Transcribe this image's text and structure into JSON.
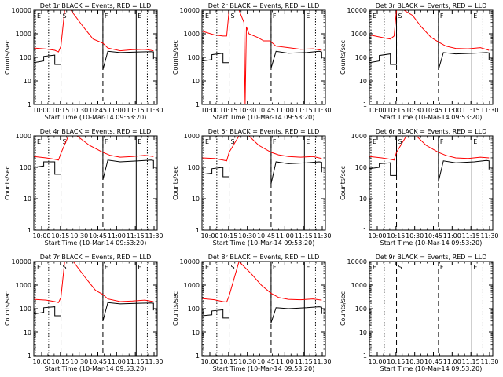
{
  "chart_data": [
    {
      "type": "line",
      "title": "Det 1r BLACK = Events, RED = LLD",
      "xlabel": "Start Time (10-Mar-14 09:53:20)",
      "ylabel": "Counts/sec",
      "y_scale": "log",
      "ylim": [
        1,
        10000
      ],
      "xlim": [
        0,
        100
      ],
      "xticks": [
        "10:00",
        "10:15",
        "10:30",
        "10:45",
        "11:00",
        "11:15",
        "11:30"
      ],
      "yticks": [
        "1",
        "10",
        "100",
        "1000",
        "10000"
      ],
      "markers": [
        {
          "label": "E",
          "x": 0
        },
        {
          "label": "S",
          "x": 22
        },
        {
          "label": "F",
          "x": 56
        },
        {
          "label": "E",
          "x": 83
        }
      ],
      "series": [
        {
          "name": "Events",
          "color": "#000000",
          "x": [
            0,
            8,
            8,
            17,
            17,
            22,
            22,
            56,
            56,
            60,
            70,
            85,
            95,
            97,
            97
          ],
          "y": [
            60,
            70,
            110,
            125,
            50,
            50,
            10000,
            10000,
            30,
            180,
            160,
            170,
            175,
            170,
            85
          ]
        },
        {
          "name": "LLD",
          "color": "#ff0000",
          "x": [
            0,
            10,
            17,
            20,
            22,
            25,
            30,
            40,
            48,
            56,
            60,
            70,
            80,
            90,
            97
          ],
          "y": [
            250,
            225,
            200,
            170,
            300,
            10000,
            10000,
            2000,
            600,
            400,
            250,
            190,
            210,
            220,
            190
          ]
        }
      ]
    },
    {
      "type": "line",
      "title": "Det 2r BLACK = Events, RED = LLD",
      "xlabel": "Start Time (10-Mar-14 09:53:20)",
      "ylabel": "Counts/sec",
      "y_scale": "log",
      "ylim": [
        1,
        10000
      ],
      "xlim": [
        0,
        100
      ],
      "xticks": [
        "10:00",
        "10:15",
        "10:30",
        "10:45",
        "11:00",
        "11:15",
        "11:30"
      ],
      "yticks": [
        "1",
        "10",
        "100",
        "1000",
        "10000"
      ],
      "markers": [
        {
          "label": "E",
          "x": 0
        },
        {
          "label": "S",
          "x": 22
        },
        {
          "label": "F",
          "x": 56
        },
        {
          "label": "E",
          "x": 83
        }
      ],
      "series": [
        {
          "name": "Events",
          "color": "#000000",
          "x": [
            0,
            8,
            8,
            17,
            17,
            22,
            22,
            56,
            56,
            60,
            70,
            85,
            95,
            97,
            97
          ],
          "y": [
            70,
            80,
            130,
            150,
            60,
            60,
            10000,
            10000,
            35,
            180,
            150,
            160,
            180,
            170,
            90
          ]
        },
        {
          "name": "LLD",
          "color": "#ff0000",
          "x": [
            0,
            10,
            17,
            20,
            22,
            30,
            34,
            35,
            36,
            38,
            45,
            50,
            55,
            60,
            70,
            80,
            90,
            97
          ],
          "y": [
            1300,
            900,
            800,
            800,
            10000,
            10000,
            3000,
            1,
            2000,
            1000,
            700,
            500,
            500,
            300,
            260,
            220,
            230,
            200
          ]
        }
      ]
    },
    {
      "type": "line",
      "title": "Det 3r BLACK = Events, RED = LLD",
      "xlabel": "Start Time (10-Mar-14 09:53:20)",
      "ylabel": "Counts/sec",
      "y_scale": "log",
      "ylim": [
        1,
        10000
      ],
      "xlim": [
        0,
        100
      ],
      "xticks": [
        "10:00",
        "10:15",
        "10:30",
        "10:45",
        "11:00",
        "11:15",
        "11:30"
      ],
      "yticks": [
        "1",
        "10",
        "100",
        "1000",
        "10000"
      ],
      "markers": [
        {
          "label": "E",
          "x": 0
        },
        {
          "label": "S",
          "x": 22
        },
        {
          "label": "F",
          "x": 56
        },
        {
          "label": "E",
          "x": 83
        }
      ],
      "series": [
        {
          "name": "Events",
          "color": "#000000",
          "x": [
            0,
            8,
            8,
            17,
            17,
            22,
            22,
            56,
            56,
            60,
            70,
            85,
            95,
            97,
            97
          ],
          "y": [
            60,
            70,
            120,
            140,
            50,
            50,
            10000,
            10000,
            30,
            160,
            140,
            150,
            160,
            155,
            75
          ]
        },
        {
          "name": "LLD",
          "color": "#ff0000",
          "x": [
            0,
            10,
            17,
            20,
            22,
            28,
            35,
            42,
            50,
            56,
            62,
            70,
            80,
            90,
            97
          ],
          "y": [
            900,
            700,
            600,
            800,
            10000,
            10000,
            6000,
            2000,
            700,
            450,
            300,
            240,
            230,
            260,
            200
          ]
        }
      ]
    },
    {
      "type": "line",
      "title": "Det 4r BLACK = Events, RED = LLD",
      "xlabel": "Start Time (10-Mar-14 09:53:20)",
      "ylabel": "Counts/sec",
      "y_scale": "log",
      "ylim": [
        1,
        1000
      ],
      "xlim": [
        0,
        100
      ],
      "xticks": [
        "10:00",
        "10:15",
        "10:30",
        "10:45",
        "11:00",
        "11:15",
        "11:30"
      ],
      "yticks": [
        "1",
        "10",
        "100",
        "1000"
      ],
      "markers": [
        {
          "label": "E",
          "x": 0
        },
        {
          "label": "S",
          "x": 22
        },
        {
          "label": "F",
          "x": 56
        },
        {
          "label": "E",
          "x": 83
        }
      ],
      "series": [
        {
          "name": "Events",
          "color": "#000000",
          "x": [
            0,
            8,
            8,
            17,
            17,
            22,
            22,
            56,
            56,
            60,
            70,
            85,
            95,
            97,
            97
          ],
          "y": [
            100,
            110,
            150,
            150,
            60,
            60,
            1000,
            1000,
            40,
            170,
            150,
            160,
            170,
            165,
            90
          ]
        },
        {
          "name": "LLD",
          "color": "#ff0000",
          "x": [
            0,
            10,
            17,
            20,
            22,
            28,
            35,
            45,
            56,
            62,
            70,
            80,
            90,
            97
          ],
          "y": [
            220,
            200,
            180,
            170,
            280,
            1000,
            1000,
            500,
            300,
            240,
            210,
            220,
            240,
            220
          ]
        }
      ]
    },
    {
      "type": "line",
      "title": "Det 5r BLACK = Events, RED = LLD",
      "xlabel": "Start Time (10-Mar-14 09:53:20)",
      "ylabel": "Counts/sec",
      "y_scale": "log",
      "ylim": [
        1,
        1000
      ],
      "xlim": [
        0,
        100
      ],
      "xticks": [
        "10:00",
        "10:15",
        "10:30",
        "10:45",
        "11:00",
        "11:15",
        "11:30"
      ],
      "yticks": [
        "1",
        "10",
        "100",
        "1000"
      ],
      "markers": [
        {
          "label": "E",
          "x": 0
        },
        {
          "label": "S",
          "x": 22
        },
        {
          "label": "F",
          "x": 56
        },
        {
          "label": "E",
          "x": 83
        }
      ],
      "series": [
        {
          "name": "Events",
          "color": "#000000",
          "x": [
            0,
            8,
            8,
            17,
            17,
            22,
            22,
            56,
            56,
            60,
            70,
            85,
            95,
            97,
            97
          ],
          "y": [
            60,
            65,
            90,
            100,
            50,
            50,
            1000,
            1000,
            30,
            150,
            130,
            140,
            150,
            145,
            70
          ]
        },
        {
          "name": "LLD",
          "color": "#ff0000",
          "x": [
            0,
            10,
            17,
            20,
            22,
            30,
            38,
            46,
            56,
            62,
            70,
            80,
            90,
            97
          ],
          "y": [
            200,
            190,
            170,
            160,
            300,
            1000,
            1000,
            500,
            300,
            250,
            220,
            210,
            220,
            190
          ]
        }
      ]
    },
    {
      "type": "line",
      "title": "Det 6r BLACK = Events, RED = LLD",
      "xlabel": "Start Time (10-Mar-14 09:53:20)",
      "ylabel": "Counts/sec",
      "y_scale": "log",
      "ylim": [
        1,
        1000
      ],
      "xlim": [
        0,
        100
      ],
      "xticks": [
        "10:00",
        "10:15",
        "10:30",
        "10:45",
        "11:00",
        "11:15",
        "11:30"
      ],
      "yticks": [
        "1",
        "10",
        "100",
        "1000"
      ],
      "markers": [
        {
          "label": "E",
          "x": 0
        },
        {
          "label": "S",
          "x": 22
        },
        {
          "label": "F",
          "x": 56
        },
        {
          "label": "E",
          "x": 83
        }
      ],
      "series": [
        {
          "name": "Events",
          "color": "#000000",
          "x": [
            0,
            8,
            8,
            17,
            17,
            22,
            22,
            56,
            56,
            60,
            70,
            85,
            95,
            97,
            97
          ],
          "y": [
            90,
            100,
            130,
            140,
            55,
            55,
            1000,
            1000,
            35,
            160,
            140,
            150,
            165,
            160,
            85
          ]
        },
        {
          "name": "LLD",
          "color": "#ff0000",
          "x": [
            0,
            10,
            17,
            20,
            22,
            30,
            38,
            46,
            56,
            62,
            70,
            80,
            90,
            97
          ],
          "y": [
            220,
            200,
            180,
            170,
            300,
            1000,
            1000,
            500,
            300,
            240,
            200,
            190,
            210,
            200
          ]
        }
      ]
    },
    {
      "type": "line",
      "title": "Det 7r BLACK = Events, RED = LLD",
      "xlabel": "Start Time (10-Mar-14 09:53:20)",
      "ylabel": "Counts/sec",
      "y_scale": "log",
      "ylim": [
        1,
        10000
      ],
      "xlim": [
        0,
        100
      ],
      "xticks": [
        "10:00",
        "10:15",
        "10:30",
        "10:45",
        "11:00",
        "11:15",
        "11:30"
      ],
      "yticks": [
        "1",
        "10",
        "100",
        "1000",
        "10000"
      ],
      "markers": [
        {
          "label": "E",
          "x": 0
        },
        {
          "label": "S",
          "x": 22
        },
        {
          "label": "F",
          "x": 56
        },
        {
          "label": "E",
          "x": 83
        }
      ],
      "series": [
        {
          "name": "Events",
          "color": "#000000",
          "x": [
            0,
            8,
            8,
            17,
            17,
            22,
            22,
            56,
            56,
            60,
            70,
            85,
            95,
            97,
            97
          ],
          "y": [
            60,
            70,
            110,
            120,
            50,
            50,
            10000,
            10000,
            30,
            180,
            160,
            170,
            175,
            170,
            85
          ]
        },
        {
          "name": "LLD",
          "color": "#ff0000",
          "x": [
            0,
            10,
            17,
            20,
            22,
            25,
            32,
            42,
            50,
            56,
            60,
            70,
            80,
            90,
            97
          ],
          "y": [
            250,
            230,
            200,
            180,
            300,
            10000,
            10000,
            2000,
            600,
            400,
            260,
            200,
            210,
            230,
            200
          ]
        }
      ]
    },
    {
      "type": "line",
      "title": "Det 8r BLACK = Events, RED = LLD",
      "xlabel": "Start Time (10-Mar-14 09:53:20)",
      "ylabel": "Counts/sec",
      "y_scale": "log",
      "ylim": [
        1,
        10000
      ],
      "xlim": [
        0,
        100
      ],
      "xticks": [
        "10:00",
        "10:15",
        "10:30",
        "10:45",
        "11:00",
        "11:15",
        "11:30"
      ],
      "yticks": [
        "1",
        "10",
        "100",
        "1000",
        "10000"
      ],
      "markers": [
        {
          "label": "E",
          "x": 0
        },
        {
          "label": "S",
          "x": 22
        },
        {
          "label": "F",
          "x": 56
        },
        {
          "label": "E",
          "x": 83
        }
      ],
      "series": [
        {
          "name": "Events",
          "color": "#000000",
          "x": [
            0,
            8,
            8,
            17,
            17,
            22,
            22,
            56,
            56,
            60,
            70,
            85,
            95,
            97,
            97
          ],
          "y": [
            50,
            55,
            80,
            90,
            40,
            40,
            10000,
            10000,
            25,
            110,
            100,
            110,
            120,
            115,
            60
          ]
        },
        {
          "name": "LLD",
          "color": "#ff0000",
          "x": [
            0,
            10,
            17,
            20,
            22,
            30,
            40,
            48,
            56,
            62,
            70,
            80,
            90,
            97
          ],
          "y": [
            270,
            240,
            200,
            190,
            350,
            10000,
            3000,
            1000,
            450,
            300,
            250,
            240,
            260,
            230
          ]
        }
      ]
    },
    {
      "type": "line",
      "title": "Det 9r BLACK = Events, RED = LLD",
      "xlabel": "Start Time (10-Mar-14 09:53:20)",
      "ylabel": "Counts/sec",
      "y_scale": "log",
      "ylim": [
        1,
        10000
      ],
      "xlim": [
        0,
        100
      ],
      "xticks": [
        "10:00",
        "10:15",
        "10:30",
        "10:45",
        "11:00",
        "11:15",
        "11:30"
      ],
      "yticks": [
        "1",
        "10",
        "100",
        "1000",
        "10000"
      ],
      "markers": [
        {
          "label": "E",
          "x": 0
        },
        {
          "label": "S",
          "x": 22
        },
        {
          "label": "F",
          "x": 56
        },
        {
          "label": "E",
          "x": 83
        }
      ],
      "series": []
    }
  ]
}
